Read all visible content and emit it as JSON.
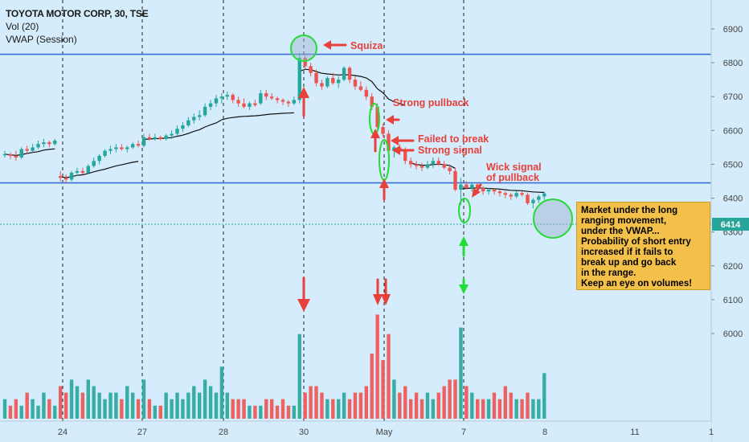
{
  "legend": {
    "symbol": "TOYOTA MOTOR CORP, 30, TSE",
    "volume": "Vol (20)",
    "vwap": "VWAP (Session)"
  },
  "price_badge": "6414",
  "note": "Market under the long\nranging movement,\nunder the VWAP...\nProbability of short entry\nincreased if it fails to\nbreak up and go back\nin the range.\nKeep an eye on volumes!",
  "annotations": {
    "squiza": "Squiza",
    "strong_pullback": "Strong pullback",
    "failed_1": "Failed to break",
    "failed_2": "Strong signal",
    "wick_1": "Wick signal",
    "wick_2": "of pullback"
  },
  "colors": {
    "up": "#26a69a",
    "down": "#ef5350",
    "vwap": "#111111",
    "level": "#3a6fd8",
    "annotation": "#e8403a",
    "highlight": "#22dd33"
  },
  "chart_data": {
    "type": "candlestick",
    "x_tick_labels": [
      "24",
      "27",
      "28",
      "30",
      "May",
      "7",
      "8",
      "11",
      "1"
    ],
    "y_ticks": [
      6000,
      6100,
      6200,
      6300,
      6400,
      6500,
      6600,
      6700,
      6800,
      6900
    ],
    "y_range": [
      5930,
      6950
    ],
    "current_price": 6414,
    "levels": [
      6825,
      6445
    ],
    "candles": [
      [
        6530,
        6540,
        6520,
        6530,
        3
      ],
      [
        6530,
        6535,
        6515,
        6525,
        2
      ],
      [
        6525,
        6540,
        6510,
        6520,
        3
      ],
      [
        6520,
        6550,
        6515,
        6545,
        2
      ],
      [
        6545,
        6555,
        6530,
        6540,
        4
      ],
      [
        6540,
        6560,
        6535,
        6550,
        3
      ],
      [
        6550,
        6570,
        6545,
        6560,
        2
      ],
      [
        6560,
        6575,
        6550,
        6565,
        4
      ],
      [
        6565,
        6570,
        6550,
        6560,
        3
      ],
      [
        6560,
        6575,
        6555,
        6570,
        2
      ],
      [
        6465,
        6480,
        6450,
        6460,
        5
      ],
      [
        6460,
        6470,
        6445,
        6455,
        4
      ],
      [
        6455,
        6480,
        6450,
        6475,
        6
      ],
      [
        6475,
        6490,
        6465,
        6480,
        5
      ],
      [
        6480,
        6490,
        6470,
        6475,
        4
      ],
      [
        6475,
        6500,
        6470,
        6495,
        6
      ],
      [
        6495,
        6520,
        6490,
        6510,
        5
      ],
      [
        6510,
        6530,
        6500,
        6525,
        4
      ],
      [
        6525,
        6545,
        6520,
        6540,
        3
      ],
      [
        6540,
        6555,
        6530,
        6545,
        4
      ],
      [
        6545,
        6560,
        6535,
        6550,
        4
      ],
      [
        6550,
        6560,
        6540,
        6545,
        3
      ],
      [
        6545,
        6555,
        6535,
        6550,
        5
      ],
      [
        6550,
        6565,
        6545,
        6560,
        4
      ],
      [
        6560,
        6570,
        6550,
        6555,
        3
      ],
      [
        6555,
        6590,
        6550,
        6580,
        6
      ],
      [
        6580,
        6590,
        6570,
        6575,
        3
      ],
      [
        6575,
        6590,
        6570,
        6580,
        2
      ],
      [
        6580,
        6585,
        6570,
        6575,
        2
      ],
      [
        6575,
        6590,
        6570,
        6585,
        4
      ],
      [
        6585,
        6600,
        6575,
        6590,
        3
      ],
      [
        6590,
        6615,
        6585,
        6605,
        4
      ],
      [
        6605,
        6625,
        6595,
        6615,
        3
      ],
      [
        6615,
        6640,
        6610,
        6630,
        4
      ],
      [
        6630,
        6650,
        6620,
        6640,
        5
      ],
      [
        6640,
        6660,
        6630,
        6645,
        4
      ],
      [
        6645,
        6680,
        6640,
        6670,
        6
      ],
      [
        6670,
        6690,
        6660,
        6680,
        5
      ],
      [
        6680,
        6705,
        6670,
        6695,
        4
      ],
      [
        6695,
        6710,
        6680,
        6700,
        8
      ],
      [
        6700,
        6715,
        6690,
        6705,
        4
      ],
      [
        6705,
        6710,
        6680,
        6690,
        3
      ],
      [
        6690,
        6700,
        6670,
        6680,
        3
      ],
      [
        6680,
        6695,
        6665,
        6670,
        3
      ],
      [
        6670,
        6685,
        6660,
        6680,
        2
      ],
      [
        6680,
        6690,
        6670,
        6675,
        2
      ],
      [
        6680,
        6720,
        6675,
        6710,
        2
      ],
      [
        6710,
        6720,
        6690,
        6700,
        3
      ],
      [
        6700,
        6710,
        6690,
        6695,
        3
      ],
      [
        6695,
        6700,
        6680,
        6690,
        2
      ],
      [
        6690,
        6695,
        6675,
        6685,
        3
      ],
      [
        6685,
        6690,
        6670,
        6680,
        2
      ],
      [
        6680,
        6700,
        6675,
        6690,
        2
      ],
      [
        6690,
        6830,
        6680,
        6815,
        13
      ],
      [
        6815,
        6825,
        6780,
        6790,
        4
      ],
      [
        6790,
        6800,
        6760,
        6770,
        5
      ],
      [
        6770,
        6780,
        6730,
        6740,
        5
      ],
      [
        6740,
        6750,
        6720,
        6730,
        4
      ],
      [
        6730,
        6760,
        6725,
        6755,
        3
      ],
      [
        6755,
        6770,
        6735,
        6740,
        3
      ],
      [
        6740,
        6760,
        6725,
        6750,
        3
      ],
      [
        6750,
        6790,
        6745,
        6785,
        4
      ],
      [
        6785,
        6790,
        6740,
        6750,
        3
      ],
      [
        6750,
        6760,
        6720,
        6730,
        4
      ],
      [
        6730,
        6745,
        6715,
        6720,
        4
      ],
      [
        6720,
        6730,
        6690,
        6700,
        5
      ],
      [
        6700,
        6710,
        6660,
        6670,
        10
      ],
      [
        6670,
        6680,
        6600,
        6610,
        16
      ],
      [
        6610,
        6620,
        6580,
        6590,
        9
      ],
      [
        6590,
        6600,
        6530,
        6540,
        13
      ],
      [
        6540,
        6555,
        6520,
        6550,
        6
      ],
      [
        6550,
        6560,
        6530,
        6540,
        4
      ],
      [
        6540,
        6550,
        6500,
        6510,
        5
      ],
      [
        6510,
        6520,
        6490,
        6500,
        3
      ],
      [
        6500,
        6510,
        6485,
        6495,
        4
      ],
      [
        6495,
        6505,
        6480,
        6490,
        3
      ],
      [
        6490,
        6510,
        6485,
        6500,
        4
      ],
      [
        6500,
        6520,
        6490,
        6510,
        3
      ],
      [
        6510,
        6520,
        6495,
        6500,
        4
      ],
      [
        6500,
        6510,
        6485,
        6490,
        5
      ],
      [
        6490,
        6500,
        6470,
        6480,
        6
      ],
      [
        6480,
        6490,
        6420,
        6425,
        6
      ],
      [
        6425,
        6460,
        6380,
        6440,
        14
      ],
      [
        6440,
        6450,
        6425,
        6430,
        5
      ],
      [
        6430,
        6445,
        6420,
        6440,
        4
      ],
      [
        6440,
        6445,
        6425,
        6430,
        3
      ],
      [
        6430,
        6435,
        6410,
        6420,
        3
      ],
      [
        6420,
        6430,
        6410,
        6425,
        3
      ],
      [
        6425,
        6430,
        6410,
        6420,
        4
      ],
      [
        6420,
        6425,
        6405,
        6415,
        3
      ],
      [
        6415,
        6420,
        6400,
        6410,
        5
      ],
      [
        6410,
        6415,
        6395,
        6405,
        4
      ],
      [
        6405,
        6420,
        6400,
        6415,
        3
      ],
      [
        6415,
        6420,
        6405,
        6410,
        3
      ],
      [
        6410,
        6415,
        6380,
        6385,
        4
      ],
      [
        6385,
        6400,
        6370,
        6395,
        3
      ],
      [
        6395,
        6410,
        6385,
        6405,
        3
      ],
      [
        6405,
        6420,
        6395,
        6414,
        7
      ]
    ]
  }
}
